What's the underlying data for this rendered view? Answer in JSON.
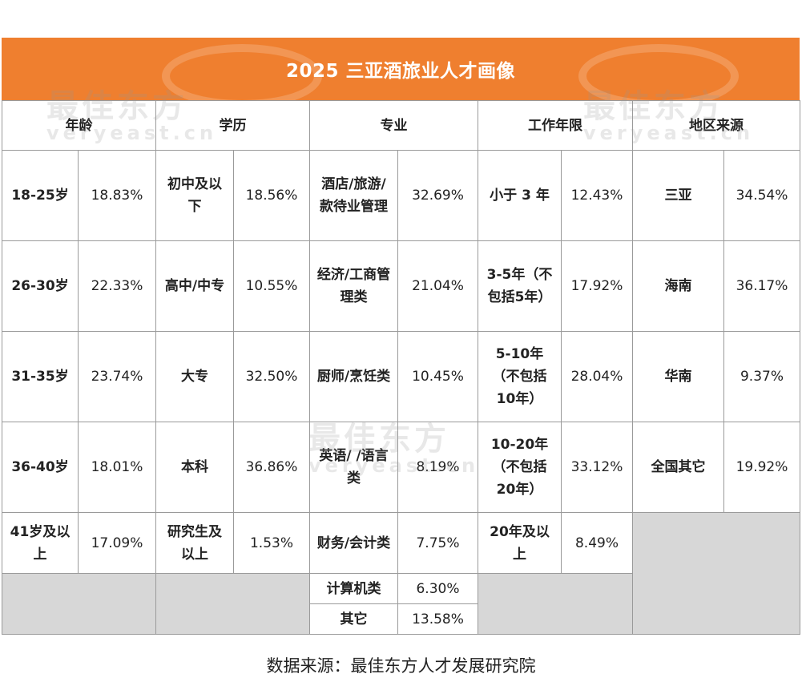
{
  "title": "2025 三亚酒旅业人才画像",
  "headers": {
    "age": "年龄",
    "education": "学历",
    "major": "专业",
    "experience": "工作年限",
    "region": "地区来源"
  },
  "age": [
    {
      "label": "18-25岁",
      "value": "18.83%"
    },
    {
      "label": "26-30岁",
      "value": "22.33%"
    },
    {
      "label": "31-35岁",
      "value": "23.74%"
    },
    {
      "label": "36-40岁",
      "value": "18.01%"
    },
    {
      "label": "41岁及以上",
      "value": "17.09%"
    }
  ],
  "education": [
    {
      "label": "初中及以下",
      "value": "18.56%"
    },
    {
      "label": "高中/中专",
      "value": "10.55%"
    },
    {
      "label": "大专",
      "value": "32.50%"
    },
    {
      "label": "本科",
      "value": "36.86%"
    },
    {
      "label": "研究生及以上",
      "value": "1.53%"
    }
  ],
  "major": [
    {
      "label": "酒店/旅游/款待业管理",
      "value": "32.69%"
    },
    {
      "label": "经济/工商管理类",
      "value": "21.04%"
    },
    {
      "label": "厨师/烹饪类",
      "value": "10.45%"
    },
    {
      "label": "英语/ /语言类",
      "value": "8.19%"
    },
    {
      "label": "财务/会计类",
      "value": "7.75%"
    },
    {
      "label": "计算机类",
      "value": "6.30%"
    },
    {
      "label": "其它",
      "value": "13.58%"
    }
  ],
  "experience": [
    {
      "label": "小于 3 年",
      "value": "12.43%"
    },
    {
      "label": "3-5年（不包括5年）",
      "value": "17.92%"
    },
    {
      "label": "5-10年（不包括10年）",
      "value": "28.04%"
    },
    {
      "label": "10-20年（不包括20年）",
      "value": "33.12%"
    },
    {
      "label": "20年及以上",
      "value": "8.49%"
    }
  ],
  "region": [
    {
      "label": "三亚",
      "value": "34.54%"
    },
    {
      "label": "海南",
      "value": "36.17%"
    },
    {
      "label": "华南",
      "value": "9.37%"
    },
    {
      "label": "全国其它",
      "value": "19.92%"
    }
  ],
  "watermark": {
    "main": "最佳东方",
    "sub": "veryeast.cn"
  },
  "source": "数据来源：最佳东方人才发展研究院"
}
